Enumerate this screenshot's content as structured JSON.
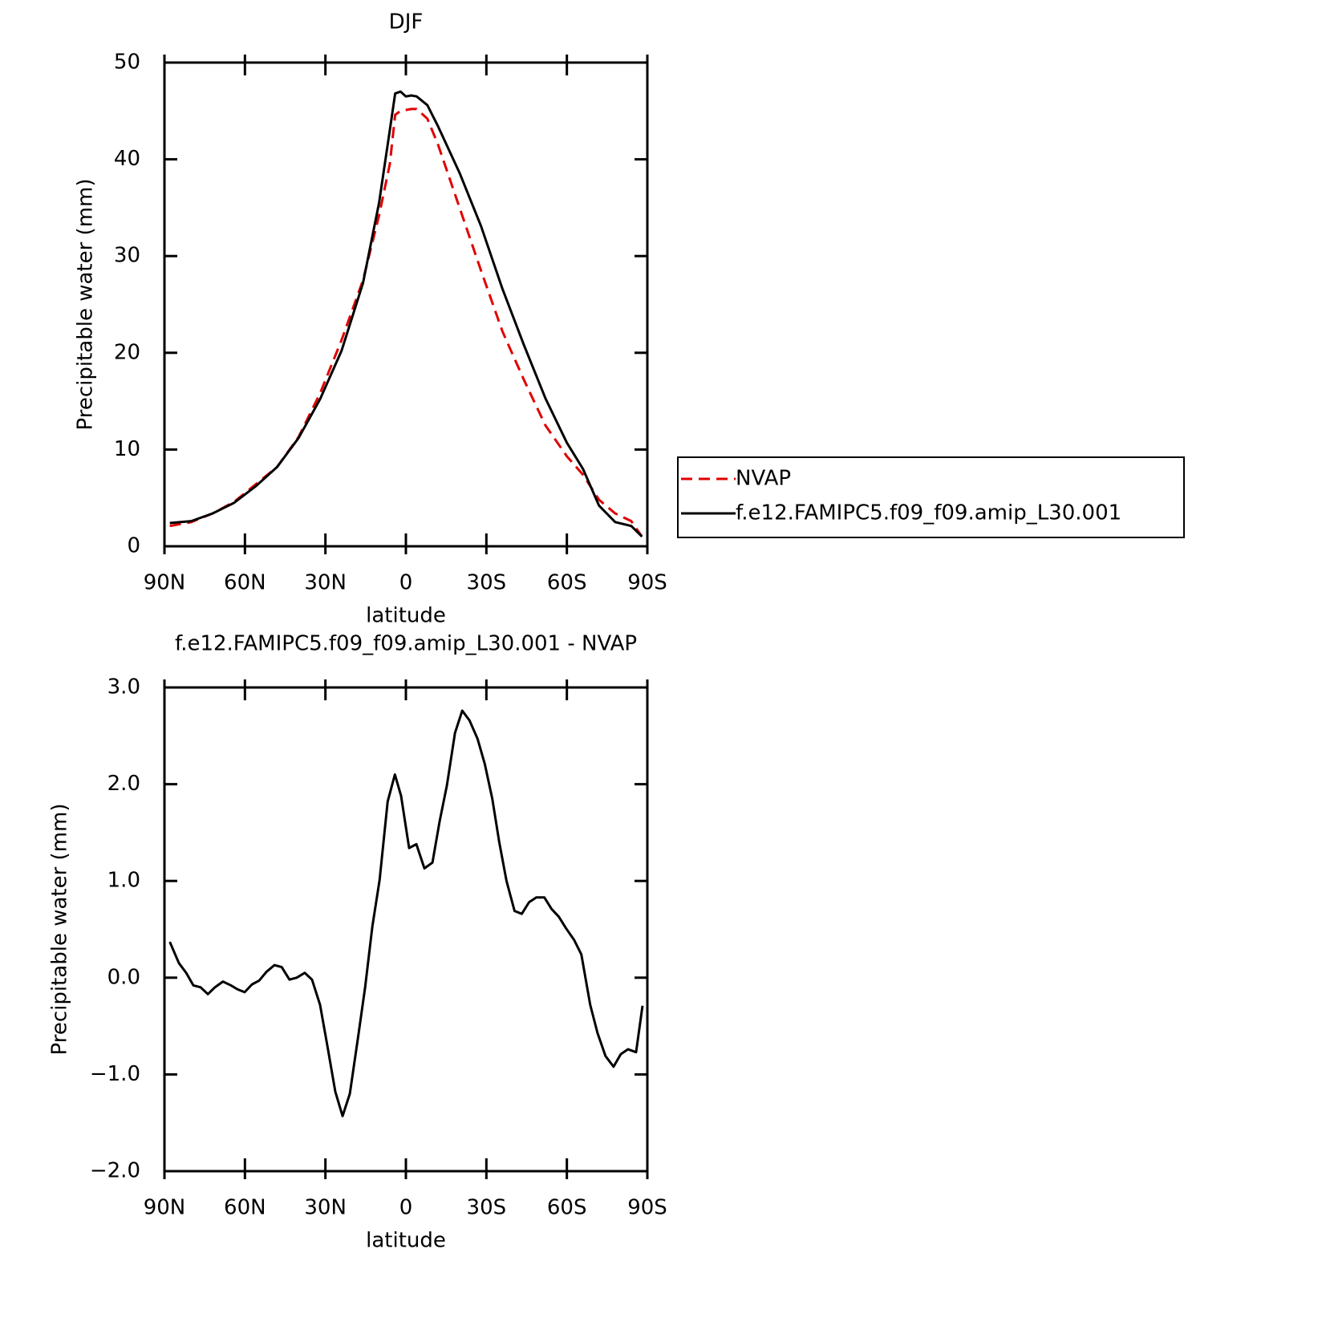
{
  "chart_data": [
    {
      "type": "line",
      "title": "DJF",
      "xlabel": "latitude",
      "ylabel": "Precipitable water (mm)",
      "x": [
        88,
        80,
        72,
        64,
        56,
        48,
        40,
        32,
        24,
        16,
        10,
        6,
        4,
        2,
        0,
        -2,
        -4,
        -8,
        -12,
        -20,
        -28,
        -36,
        -44,
        -52,
        -60,
        -66,
        -72,
        -78,
        -84,
        -88
      ],
      "series": [
        {
          "name": "NVAP",
          "color": "#e00000",
          "dashed": true,
          "values": [
            2.1,
            2.5,
            3.4,
            4.6,
            6.4,
            8.2,
            11.3,
            15.8,
            21.3,
            27.5,
            34.2,
            39.5,
            44.6,
            45.0,
            45.1,
            45.2,
            45.2,
            44.2,
            41.5,
            35.0,
            28.5,
            22.2,
            17.2,
            12.5,
            9.3,
            7.4,
            4.8,
            3.4,
            2.6,
            1.0
          ]
        },
        {
          "name": "f.e12.FAMIPC5.f09_f09.amip_L30.001",
          "color": "#000000",
          "dashed": false,
          "values": [
            2.4,
            2.6,
            3.4,
            4.5,
            6.2,
            8.2,
            11.2,
            15.2,
            20.2,
            27.2,
            35.5,
            43.0,
            46.8,
            47.0,
            46.5,
            46.6,
            46.5,
            45.6,
            43.4,
            38.6,
            33.1,
            26.6,
            20.8,
            15.3,
            10.7,
            8.0,
            4.2,
            2.5,
            2.1,
            1.0
          ]
        }
      ],
      "xlim": [
        90,
        -90
      ],
      "xticks": [
        {
          "value": 90,
          "label": "90N"
        },
        {
          "value": 60,
          "label": "60N"
        },
        {
          "value": 30,
          "label": "30N"
        },
        0,
        {
          "value": -30,
          "label": "30S"
        },
        {
          "value": -60,
          "label": "60S"
        },
        {
          "value": -90,
          "label": "90S"
        }
      ],
      "ylim": [
        0,
        50
      ],
      "yticks": [
        0,
        10,
        20,
        30,
        40,
        50
      ],
      "legend": "right"
    },
    {
      "type": "line",
      "title": "f.e12.FAMIPC5.f09_f09.amip_L30.001 - NVAP",
      "xlabel": "latitude",
      "ylabel": "Precipitable water (mm)",
      "x": [
        88,
        84.6,
        81.9,
        79.2,
        76.5,
        73.8,
        71.2,
        68.2,
        65.2,
        62.8,
        60.1,
        57.4,
        54.7,
        52.0,
        49.0,
        46.3,
        43.4,
        40.7,
        37.7,
        35.0,
        32.0,
        29.3,
        26.3,
        23.6,
        20.9,
        17.9,
        15.2,
        12.5,
        9.8,
        6.8,
        4.1,
        1.8,
        -1.2,
        -3.9,
        -6.9,
        -9.9,
        -12.6,
        -15.3,
        -18.3,
        -21.0,
        -23.7,
        -26.7,
        -29.4,
        -32.2,
        -34.8,
        -37.5,
        -40.5,
        -43.2,
        -45.9,
        -48.6,
        -51.6,
        -54.3,
        -57.0,
        -59.7,
        -62.7,
        -65.4,
        -68.7,
        -71.4,
        -74.4,
        -77.4,
        -80.1,
        -82.8,
        -85.8,
        -88.2
      ],
      "series": [
        {
          "name": "f.e12.FAMIPC5.f09_f09.amip_L30.001 - NVAP",
          "color": "#000000",
          "values": [
            0.37,
            0.15,
            0.05,
            -0.08,
            -0.1,
            -0.17,
            -0.1,
            -0.04,
            -0.08,
            -0.12,
            -0.15,
            -0.07,
            -0.03,
            0.06,
            0.13,
            0.11,
            -0.02,
            0.0,
            0.05,
            -0.02,
            -0.28,
            -0.7,
            -1.18,
            -1.43,
            -1.2,
            -0.63,
            -0.1,
            0.53,
            1.01,
            1.82,
            2.1,
            1.88,
            1.34,
            1.38,
            1.13,
            1.19,
            1.62,
            1.99,
            2.53,
            2.76,
            2.66,
            2.47,
            2.21,
            1.85,
            1.4,
            1.0,
            0.69,
            0.66,
            0.78,
            0.83,
            0.83,
            0.71,
            0.63,
            0.51,
            0.39,
            0.24,
            -0.28,
            -0.57,
            -0.81,
            -0.92,
            -0.79,
            -0.74,
            -0.77,
            -0.29
          ]
        }
      ],
      "xlim": [
        90,
        -90
      ],
      "xticks": [
        {
          "value": 90,
          "label": "90N"
        },
        {
          "value": 60,
          "label": "60N"
        },
        {
          "value": 30,
          "label": "30N"
        },
        0,
        {
          "value": -30,
          "label": "30S"
        },
        {
          "value": -60,
          "label": "60S"
        },
        {
          "value": -90,
          "label": "90S"
        }
      ],
      "ylim": [
        -2,
        3
      ],
      "yticks": [
        {
          "value": -2,
          "label": "−2.0"
        },
        {
          "value": -1,
          "label": "−1.0"
        },
        {
          "value": 0,
          "label": "0.0"
        },
        {
          "value": 1,
          "label": "1.0"
        },
        {
          "value": 2,
          "label": "2.0"
        },
        {
          "value": 3,
          "label": "3.0"
        }
      ]
    }
  ]
}
